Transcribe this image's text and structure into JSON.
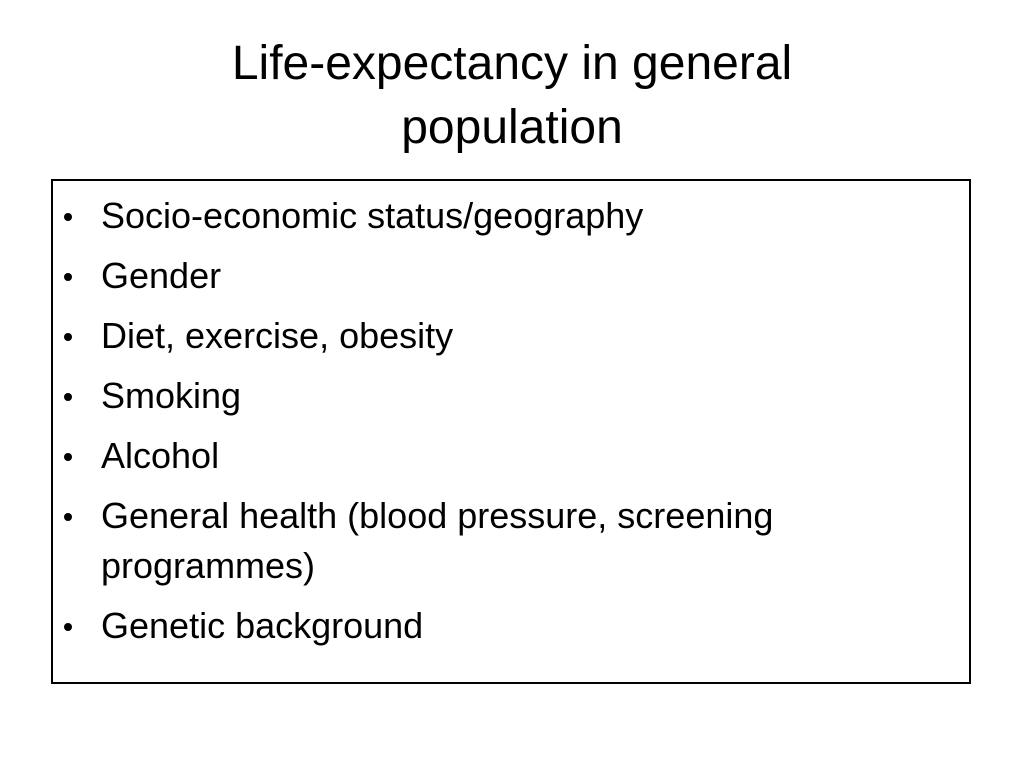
{
  "slide": {
    "title": "Life-expectancy in general population",
    "bullets": [
      "Socio-economic status/geography",
      "Gender",
      "Diet, exercise, obesity",
      "Smoking",
      "Alcohol",
      "General health (blood pressure, screening programmes)",
      "Genetic background"
    ]
  }
}
